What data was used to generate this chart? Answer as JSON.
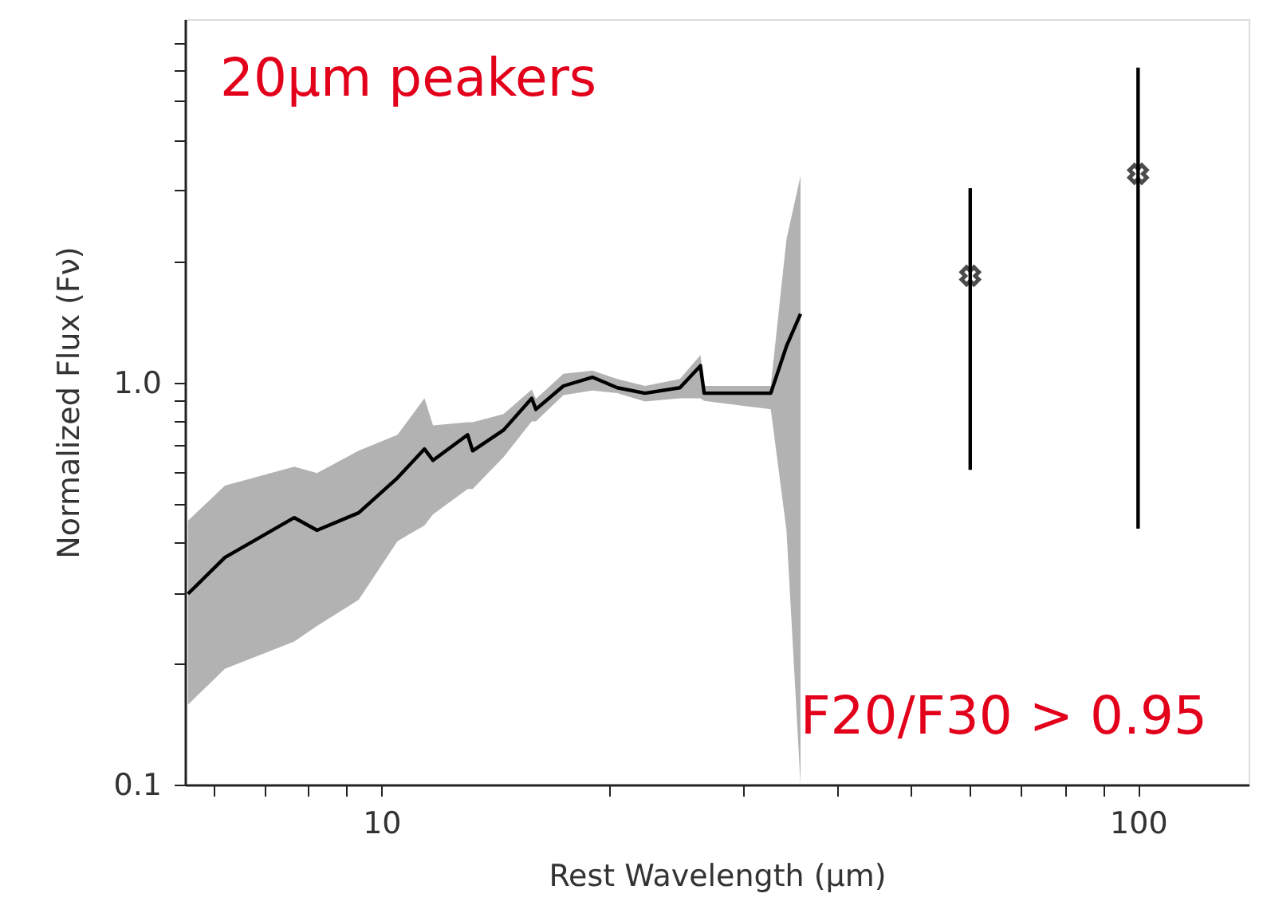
{
  "chart_data": {
    "type": "line",
    "xlabel": "Rest Wavelength (μm)",
    "ylabel": "Normalized Flux (Fν)",
    "annotations": [
      "20μm peakers",
      "F20/F30 > 0.95"
    ],
    "log": "xy",
    "grid": false,
    "xlim": [
      5.5,
      140
    ],
    "ylim": [
      0.1,
      8
    ],
    "xticks": [
      {
        "value": 6,
        "label": null
      },
      {
        "value": 7,
        "label": null
      },
      {
        "value": 8,
        "label": null
      },
      {
        "value": 9,
        "label": null
      },
      10,
      {
        "value": 20,
        "label": null
      },
      {
        "value": 30,
        "label": null
      },
      {
        "value": 40,
        "label": null
      },
      {
        "value": 50,
        "label": null
      },
      {
        "value": 60,
        "label": null
      },
      {
        "value": 70,
        "label": null
      },
      {
        "value": 80,
        "label": null
      },
      {
        "value": 90,
        "label": null
      },
      100
    ],
    "yticks": [
      0.1,
      {
        "value": 0.2,
        "label": null
      },
      {
        "value": 0.3,
        "label": null
      },
      {
        "value": 0.4,
        "label": null
      },
      {
        "value": 0.5,
        "label": null
      },
      {
        "value": 0.6,
        "label": null
      },
      {
        "value": 0.7,
        "label": null
      },
      {
        "value": 0.8,
        "label": null
      },
      {
        "value": 0.9,
        "label": null
      },
      {
        "value": 1,
        "label": "1.0"
      },
      {
        "value": 2,
        "label": null
      },
      {
        "value": 3,
        "label": null
      },
      {
        "value": 4,
        "label": null
      },
      {
        "value": 5,
        "label": null
      },
      {
        "value": 6,
        "label": null
      },
      {
        "value": 7,
        "label": null
      }
    ],
    "series": [
      {
        "type": "line",
        "color": "#000000",
        "line_style": "solid",
        "marker": "none",
        "x": [
          5.55,
          6.21,
          7.67,
          8.22,
          9.33,
          10.5,
          11.4,
          11.7,
          13.0,
          13.2,
          14.5,
          15.8,
          16.0,
          17.4,
          19.0,
          20.5,
          22.3,
          24.8,
          26.4,
          26.7,
          32.7,
          34.3,
          35.8
        ],
        "values": [
          0.298,
          0.367,
          0.461,
          0.429,
          0.474,
          0.579,
          0.683,
          0.64,
          0.741,
          0.676,
          0.761,
          0.913,
          0.857,
          0.98,
          1.03,
          0.97,
          0.94,
          0.97,
          1.1,
          0.94,
          0.94,
          1.23,
          1.48
        ],
        "lower": [
          0.158,
          0.194,
          0.227,
          0.248,
          0.288,
          0.403,
          0.441,
          0.47,
          0.543,
          0.543,
          0.652,
          0.8,
          0.8,
          0.93,
          0.955,
          0.94,
          0.896,
          0.913,
          0.913,
          0.9,
          0.857,
          0.429,
          0.1
        ],
        "upper": [
          0.453,
          0.554,
          0.617,
          0.595,
          0.676,
          0.741,
          0.913,
          0.782,
          0.796,
          0.796,
          0.834,
          0.96,
          0.91,
          1.05,
          1.07,
          1.02,
          0.98,
          1.02,
          1.17,
          0.98,
          0.98,
          2.27,
          3.26
        ]
      },
      {
        "type": "scatter",
        "color": "#000000",
        "marker": "cross",
        "x": [
          60,
          100
        ],
        "values": [
          1.84,
          3.3
        ],
        "errors": [
          [
            0.606,
            3.04
          ],
          [
            0.433,
            6.06
          ]
        ]
      }
    ]
  }
}
